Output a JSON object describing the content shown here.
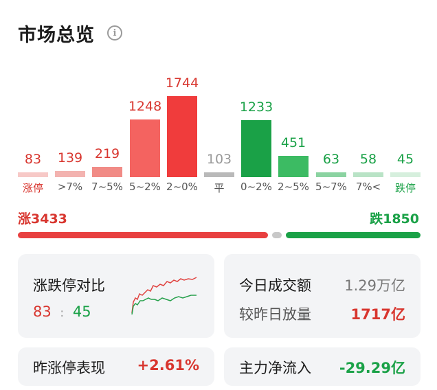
{
  "header": {
    "title": "市场总览",
    "info_icon": "info-icon"
  },
  "colors": {
    "red": "#f03c3c",
    "green": "#1aa147",
    "gray": "#b9b9b9"
  },
  "distribution": [
    {
      "label": "涨停",
      "value": "83",
      "color": "#f7c9c7",
      "label_color": "#d8362f",
      "value_color": "#d8362f"
    },
    {
      "label": ">7%",
      "value": "139",
      "color": "#f3b3b0",
      "label_color": "#555555",
      "value_color": "#d8362f"
    },
    {
      "label": "7~5%",
      "value": "219",
      "color": "#f18b86",
      "label_color": "#555555",
      "value_color": "#d8362f"
    },
    {
      "label": "5~2%",
      "value": "1248",
      "color": "#f46360",
      "label_color": "#555555",
      "value_color": "#d8362f"
    },
    {
      "label": "2~0%",
      "value": "1744",
      "color": "#f03c3c",
      "label_color": "#555555",
      "value_color": "#d8362f"
    },
    {
      "label": "平",
      "value": "103",
      "color": "#b9b9b9",
      "label_color": "#555555",
      "value_color": "#999999"
    },
    {
      "label": "0~2%",
      "value": "1233",
      "color": "#1aa147",
      "label_color": "#555555",
      "value_color": "#1aa147"
    },
    {
      "label": "2~5%",
      "value": "451",
      "color": "#3cbb63",
      "label_color": "#555555",
      "value_color": "#1aa147"
    },
    {
      "label": "5~7%",
      "value": "63",
      "color": "#8bd3a1",
      "label_color": "#555555",
      "value_color": "#1aa147"
    },
    {
      "label": "7%<",
      "value": "58",
      "color": "#b9e3c6",
      "label_color": "#555555",
      "value_color": "#1aa147"
    },
    {
      "label": "跌停",
      "value": "45",
      "color": "#d6efdd",
      "label_color": "#1aa147",
      "value_color": "#1aa147"
    }
  ],
  "updown": {
    "up_label": "涨3433",
    "down_label": "跌1850",
    "up_count": 3433,
    "down_count": 1850
  },
  "cards": {
    "limit_compare": {
      "title": "涨跌停对比",
      "up": "83",
      "sep": ":",
      "down": "45"
    },
    "turnover": {
      "label": "今日成交额",
      "value": "1.29万亿"
    },
    "volume_change": {
      "label": "较昨日放量",
      "value": "1717亿"
    },
    "yesterday_limit": {
      "label": "昨涨停表现",
      "value": "+2.61%"
    },
    "main_flow": {
      "label": "主力净流入",
      "value": "-29.29亿"
    }
  }
}
